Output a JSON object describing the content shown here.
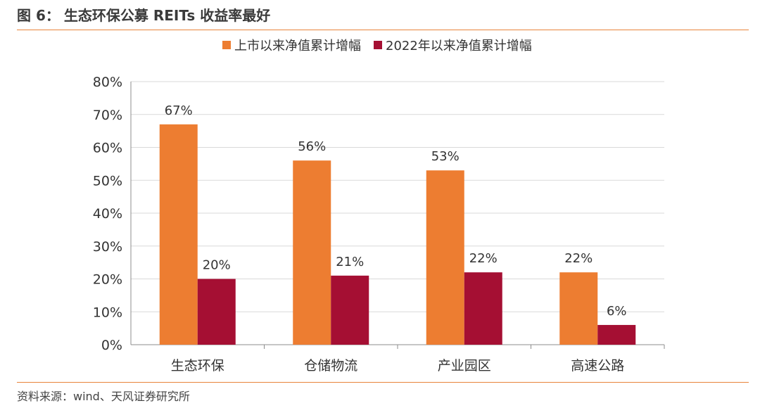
{
  "figure": {
    "number": "图 6：",
    "title": "生态环保公募 REITs 收益率最好"
  },
  "source": "资料来源：wind、天风证券研究所",
  "colors": {
    "series1": "#ED7D31",
    "series2": "#A50F33",
    "rule": "#e8843a",
    "grid": "#d9d9d9"
  },
  "chart_data": {
    "type": "bar",
    "categories": [
      "生态环保",
      "仓储物流",
      "产业园区",
      "高速公路"
    ],
    "series": [
      {
        "name": "上市以来净值累计增幅",
        "values": [
          67,
          56,
          53,
          22
        ],
        "labels": [
          "67%",
          "56%",
          "53%",
          "22%"
        ]
      },
      {
        "name": "2022年以来净值累计增幅",
        "values": [
          20,
          21,
          22,
          6
        ],
        "labels": [
          "20%",
          "21%",
          "22%",
          "6%"
        ]
      }
    ],
    "ylim": [
      0,
      80
    ],
    "yticks": [
      "0%",
      "10%",
      "20%",
      "30%",
      "40%",
      "50%",
      "60%",
      "70%",
      "80%"
    ],
    "grid": true,
    "legend": "top-center"
  }
}
